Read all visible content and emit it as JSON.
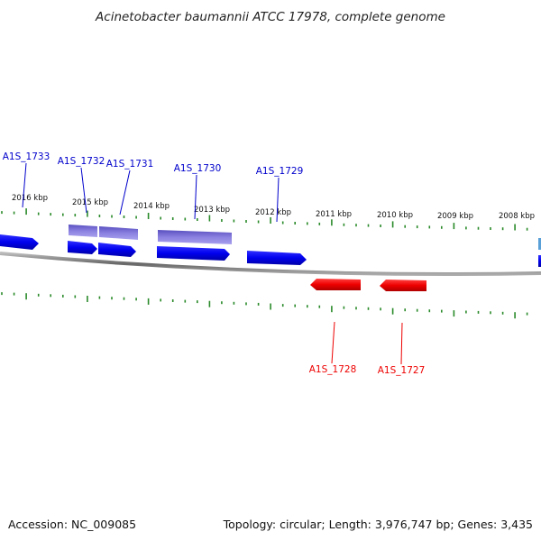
{
  "title": "Acinetobacter baumannii ATCC 17978, complete genome",
  "footer": {
    "accession": "Accession: NC_009085",
    "summary": "Topology: circular; Length: 3,976,747 bp; Genes: 3,435"
  },
  "colors": {
    "forward_gene": "#0000ee",
    "forward_gene_light": "#7b72d6",
    "reverse_gene": "#ee0000",
    "tick": "#2a8a2a",
    "backbone": "#777777"
  },
  "kbp_labels": [
    "2016 kbp",
    "2015 kbp",
    "2014 kbp",
    "2013 kbp",
    "2012 kbp",
    "2011 kbp",
    "2010 kbp",
    "2009 kbp",
    "2008 kbp"
  ],
  "gene_labels": {
    "forward": [
      "A1S_1733",
      "A1S_1732",
      "A1S_1731",
      "A1S_1730",
      "A1S_1729"
    ],
    "reverse": [
      "A1S_1728",
      "A1S_1727"
    ]
  }
}
